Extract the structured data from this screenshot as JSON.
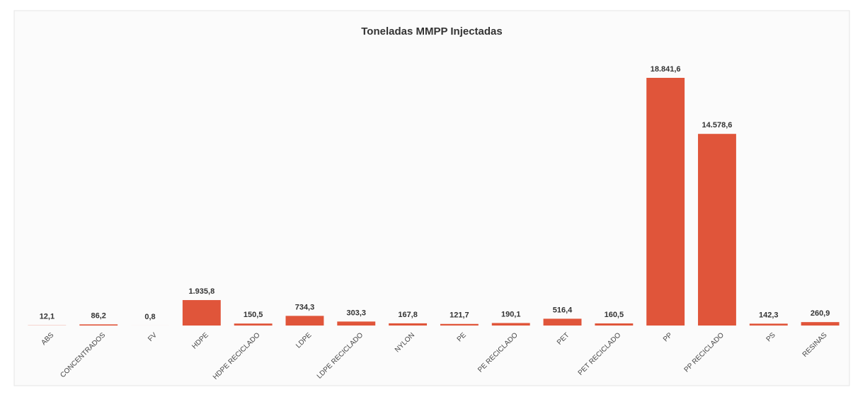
{
  "chart_data": {
    "type": "bar",
    "title": "Toneladas MMPP Injectadas",
    "categories": [
      "ABS",
      "CONCENTRADOS",
      "FV",
      "HDPE",
      "HDPE RECICLADO",
      "LDPE",
      "LDPE RECICLADO",
      "NYLON",
      "PE",
      "PE RECICLADO",
      "PET",
      "PET RECICLADO",
      "PP",
      "PP RECICLADO",
      "PS",
      "RESINAS"
    ],
    "values": [
      12.1,
      86.2,
      0.8,
      1935.8,
      150.5,
      734.3,
      303.3,
      167.8,
      121.7,
      190.1,
      516.4,
      160.5,
      18841.6,
      14578.6,
      142.3,
      260.9
    ],
    "value_labels": [
      "12,1",
      "86,2",
      "0,8",
      "1.935,8",
      "150,5",
      "734,3",
      "303,3",
      "167,8",
      "121,7",
      "190,1",
      "516,4",
      "160,5",
      "18.841,6",
      "14.578,6",
      "142,3",
      "260,9"
    ],
    "color": "#e0553a"
  }
}
